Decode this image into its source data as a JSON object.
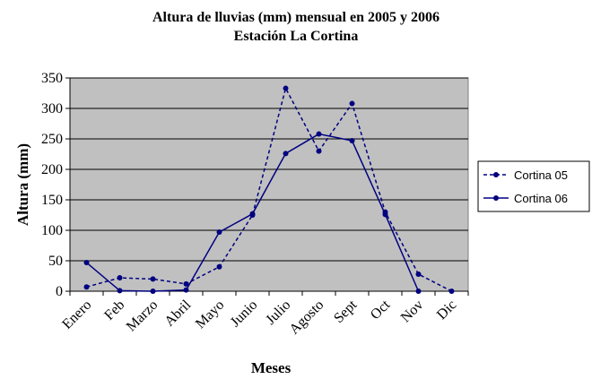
{
  "chart_data": {
    "type": "line",
    "title": "Altura de lluvias (mm) mensual en 2005 y 2006",
    "subtitle": "Estación La Cortina",
    "x_label": "Meses",
    "y_label": "Altura (mm)",
    "categories": [
      "Enero",
      "Feb",
      "Marzo",
      "Abril",
      "Mayo",
      "Junio",
      "Julio",
      "Agosto",
      "Sept",
      "Oct",
      "Nov",
      "Dic"
    ],
    "series": [
      {
        "name": "Cortina 05",
        "color": "#000080",
        "dashed": true,
        "values": [
          7,
          22,
          20,
          12,
          40,
          125,
          333,
          230,
          308,
          130,
          28,
          0
        ]
      },
      {
        "name": "Cortina 06",
        "color": "#000080",
        "dashed": false,
        "values": [
          47,
          1,
          0,
          2,
          97,
          127,
          226,
          258,
          247,
          126,
          0,
          null
        ]
      }
    ],
    "ylim": [
      0,
      350
    ],
    "yticks": [
      0,
      50,
      100,
      150,
      200,
      250,
      300,
      350
    ],
    "grid": true,
    "legend": "right"
  }
}
